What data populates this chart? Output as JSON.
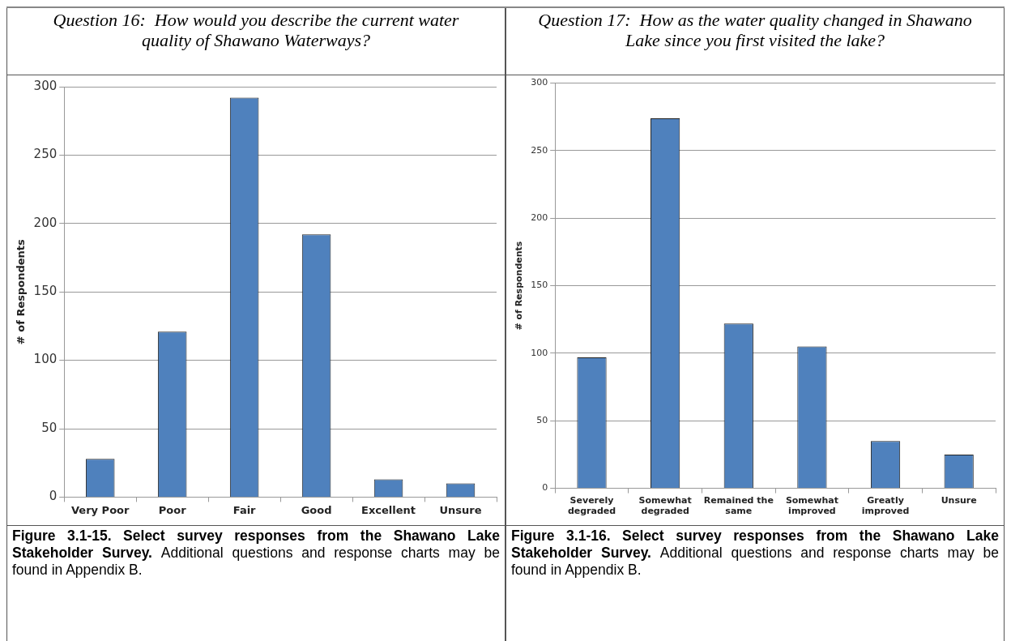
{
  "chart_data": [
    {
      "type": "bar",
      "title": "Question 16:  How would you describe the current water quality of Shawano Waterways?",
      "ylabel": "# of Respondents",
      "categories": [
        "Very Poor",
        "Poor",
        "Fair",
        "Good",
        "Excellent",
        "Unsure"
      ],
      "color": "#4f81bd",
      "values": [
        28,
        121,
        292,
        192,
        13,
        10
      ],
      "ylim": [
        0,
        300
      ],
      "yticks": [
        0,
        50,
        100,
        150,
        200,
        250,
        300
      ],
      "grid": "y",
      "annotations": [
        "Figure 3.1-15.  Select survey responses from the Shawano Lake Stakeholder Survey.",
        "Additional questions and response charts may be found in Appendix B."
      ]
    },
    {
      "type": "bar",
      "title": "Question 17:  How as the water quality changed in Shawano Lake since you first visited the lake?",
      "ylabel": "# of Respondents",
      "categories": [
        "Severely degraded",
        "Somewhat degraded",
        "Remained the same",
        "Somewhat improved",
        "Greatly improved",
        "Unsure"
      ],
      "color": "#4f81bd",
      "values": [
        97,
        274,
        122,
        105,
        35,
        25
      ],
      "ylim": [
        0,
        300
      ],
      "yticks": [
        0,
        50,
        100,
        150,
        200,
        250,
        300
      ],
      "grid": "y",
      "annotations": [
        "Figure 3.1-16.  Select survey responses from the Shawano Lake Stakeholder Survey.",
        "Additional questions and response charts may be found in Appendix B."
      ]
    }
  ]
}
